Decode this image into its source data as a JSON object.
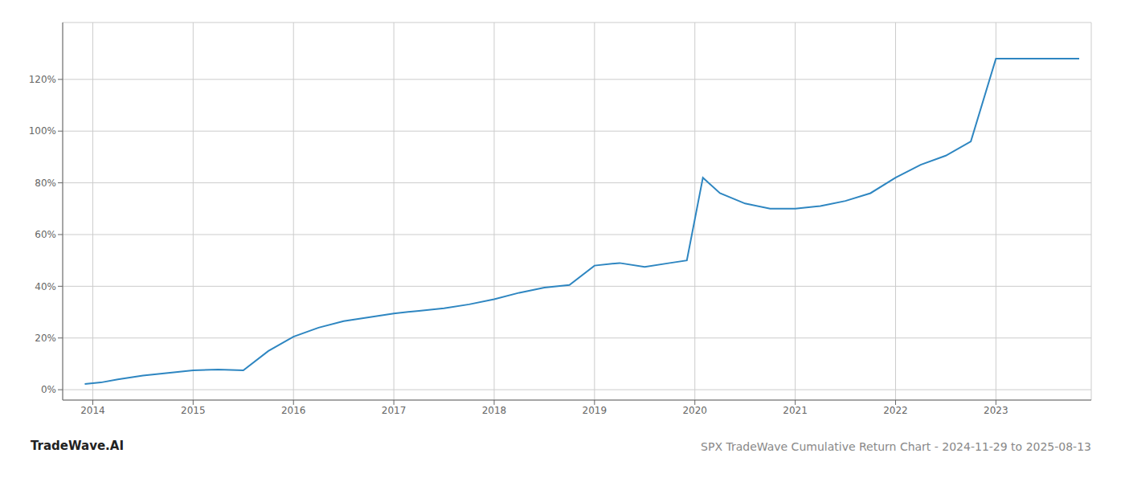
{
  "chart_data": {
    "type": "line",
    "title": "SPX TradeWave Cumulative Return Chart - 2024-11-29 to 2025-08-13",
    "annotations": [
      "TradeWave.AI"
    ],
    "color": "#2e86c1",
    "grid": true,
    "x": [
      2013.92,
      2014.0,
      2014.08,
      2014.25,
      2014.5,
      2014.75,
      2015.0,
      2015.25,
      2015.5,
      2015.75,
      2016.0,
      2016.25,
      2016.5,
      2016.75,
      2017.0,
      2017.25,
      2017.5,
      2017.75,
      2018.0,
      2018.25,
      2018.5,
      2018.75,
      2019.0,
      2019.25,
      2019.5,
      2019.75,
      2019.92,
      2020.08,
      2020.25,
      2020.5,
      2020.75,
      2021.0,
      2021.25,
      2021.5,
      2021.75,
      2022.0,
      2022.25,
      2022.5,
      2022.75,
      2023.0,
      2023.5,
      2023.83
    ],
    "values": [
      0.022,
      0.025,
      0.028,
      0.04,
      0.055,
      0.065,
      0.075,
      0.078,
      0.075,
      0.15,
      0.205,
      0.24,
      0.265,
      0.28,
      0.295,
      0.305,
      0.315,
      0.33,
      0.35,
      0.375,
      0.395,
      0.405,
      0.48,
      0.49,
      0.475,
      0.49,
      0.5,
      0.82,
      0.76,
      0.72,
      0.7,
      0.7,
      0.71,
      0.73,
      0.76,
      0.82,
      0.87,
      0.905,
      0.96,
      1.28,
      1.28,
      1.28
    ],
    "xlim": [
      2013.7,
      2023.95
    ],
    "xticks": [
      2014,
      2015,
      2016,
      2017,
      2018,
      2019,
      2020,
      2021,
      2022,
      2023
    ],
    "ylim": [
      -0.04,
      1.42
    ],
    "yticks": [
      {
        "value": 0.0,
        "label": "0%"
      },
      {
        "value": 0.2,
        "label": "20%"
      },
      {
        "value": 0.4,
        "label": "40%"
      },
      {
        "value": 0.6,
        "label": "60%"
      },
      {
        "value": 0.8,
        "label": "80%"
      },
      {
        "value": 1.0,
        "label": "100%"
      },
      {
        "value": 1.2,
        "label": "120%"
      }
    ]
  }
}
